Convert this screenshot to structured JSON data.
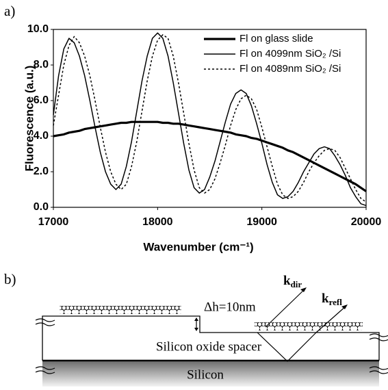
{
  "panel_labels": [
    "a)",
    "b)"
  ],
  "chart_data": {
    "type": "line",
    "x_label": "Wavenumber (cm⁻¹)",
    "y_label": "Fluorescence (a.u.)",
    "x": [
      17000,
      17050,
      17100,
      17150,
      17200,
      17250,
      17300,
      17350,
      17400,
      17450,
      17500,
      17550,
      17600,
      17650,
      17700,
      17750,
      17800,
      17850,
      17900,
      17950,
      18000,
      18050,
      18100,
      18150,
      18200,
      18250,
      18300,
      18350,
      18400,
      18450,
      18500,
      18550,
      18600,
      18650,
      18700,
      18750,
      18800,
      18850,
      18900,
      18950,
      19000,
      19050,
      19100,
      19150,
      19200,
      19250,
      19300,
      19350,
      19400,
      19450,
      19500,
      19550,
      19600,
      19650,
      19700,
      19750,
      19800,
      19850,
      19900,
      19950,
      20000
    ],
    "series": [
      {
        "name": "Fl on glass slide",
        "color": "#000000",
        "line_width": 3.2,
        "line_style": "solid",
        "values": [
          4.0,
          4.05,
          4.1,
          4.2,
          4.25,
          4.3,
          4.4,
          4.45,
          4.5,
          4.55,
          4.6,
          4.65,
          4.7,
          4.75,
          4.75,
          4.8,
          4.8,
          4.8,
          4.8,
          4.8,
          4.8,
          4.75,
          4.75,
          4.7,
          4.7,
          4.65,
          4.6,
          4.55,
          4.5,
          4.45,
          4.4,
          4.35,
          4.3,
          4.25,
          4.2,
          4.1,
          4.05,
          4.0,
          3.9,
          3.85,
          3.75,
          3.65,
          3.55,
          3.45,
          3.35,
          3.2,
          3.1,
          2.95,
          2.8,
          2.65,
          2.5,
          2.35,
          2.2,
          2.05,
          1.9,
          1.75,
          1.6,
          1.45,
          1.3,
          1.1,
          0.9
        ]
      },
      {
        "name": "Fl on 4099nm SiO₂ /Si",
        "color": "#000000",
        "line_width": 1.5,
        "line_style": "solid",
        "values": [
          5.2,
          7.4,
          8.9,
          9.5,
          9.25,
          8.5,
          7.4,
          6.0,
          4.5,
          3.1,
          2.0,
          1.3,
          1.0,
          1.3,
          2.3,
          3.7,
          5.4,
          7.1,
          8.5,
          9.5,
          9.8,
          9.5,
          8.5,
          7.0,
          5.3,
          3.6,
          2.1,
          1.1,
          0.8,
          1.0,
          1.7,
          2.6,
          3.7,
          4.8,
          5.8,
          6.4,
          6.6,
          6.4,
          5.7,
          4.7,
          3.6,
          2.4,
          1.4,
          0.7,
          0.5,
          0.6,
          0.9,
          1.4,
          2.0,
          2.5,
          3.0,
          3.3,
          3.4,
          3.3,
          2.9,
          2.4,
          1.8,
          1.1,
          0.6,
          0.2,
          0.1
        ]
      },
      {
        "name": "Fl on 4089nm SiO₂ /Si",
        "color": "#000000",
        "line_width": 1.5,
        "line_style": "dotted",
        "values": [
          4.6,
          6.3,
          8.0,
          9.1,
          9.6,
          9.25,
          8.5,
          7.4,
          6.0,
          4.5,
          3.1,
          2.0,
          1.3,
          1.0,
          1.3,
          2.3,
          3.7,
          5.4,
          7.1,
          8.5,
          9.4,
          9.7,
          9.5,
          8.5,
          7.0,
          5.3,
          3.6,
          2.1,
          1.1,
          0.8,
          1.0,
          1.6,
          2.5,
          3.5,
          4.6,
          5.5,
          6.1,
          6.3,
          6.1,
          5.5,
          4.5,
          3.4,
          2.3,
          1.3,
          0.7,
          0.5,
          0.6,
          0.9,
          1.4,
          2.0,
          2.5,
          2.9,
          3.2,
          3.3,
          3.2,
          2.8,
          2.2,
          1.6,
          1.0,
          0.5,
          0.3
        ]
      }
    ],
    "xlim": [
      17000,
      20000
    ],
    "xticks": [
      17000,
      18000,
      19000,
      20000
    ],
    "ylim": [
      0,
      10
    ],
    "yticks": [
      {
        "value": 0,
        "label": "0.0"
      },
      {
        "value": 2,
        "label": "2.0"
      },
      {
        "value": 4,
        "label": "4.0"
      },
      {
        "value": 6,
        "label": "6.0"
      },
      {
        "value": 8,
        "label": "8.0"
      },
      {
        "value": 10,
        "label": "10.0"
      }
    ],
    "legend": "upper right",
    "grid": false
  },
  "diagram": {
    "step_label": "Δh=10nm",
    "k_dir": {
      "symbol": "k",
      "subscript": "dir"
    },
    "k_refl": {
      "symbol": "k",
      "subscript": "refl"
    },
    "spacer_label": "Silicon oxide spacer",
    "substrate_label": "Silicon"
  }
}
